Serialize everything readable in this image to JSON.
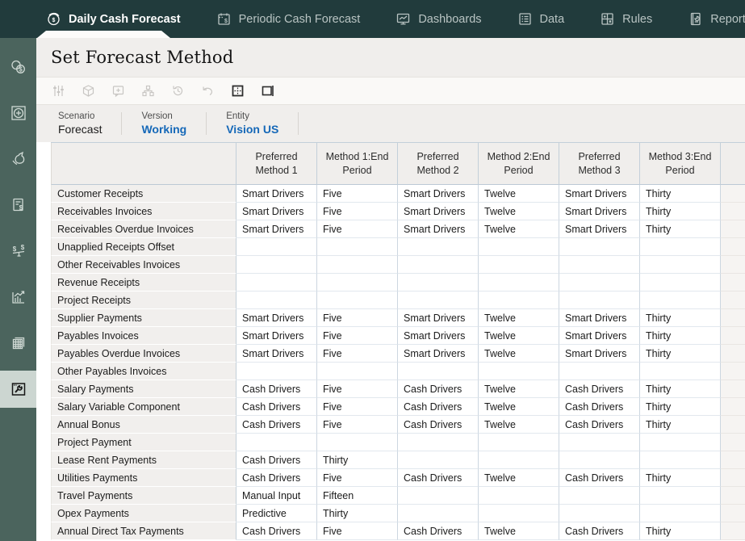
{
  "nav": {
    "tabs": [
      {
        "label": "Daily Cash Forecast",
        "icon": "dollar-cycle-icon",
        "active": true
      },
      {
        "label": "Periodic Cash Forecast",
        "icon": "calendar-dollar-icon",
        "active": false
      },
      {
        "label": "Dashboards",
        "icon": "monitor-chart-icon",
        "active": false
      },
      {
        "label": "Data",
        "icon": "data-list-icon",
        "active": false
      },
      {
        "label": "Rules",
        "icon": "calculator-icon",
        "active": false
      },
      {
        "label": "Reports",
        "icon": "report-book-icon",
        "active": false
      }
    ]
  },
  "sidebar": {
    "icons": [
      "cash-currency-icon",
      "add-target-icon",
      "money-bag-icon",
      "invoice-dollar-icon",
      "cash-balance-icon",
      "trend-chart-icon",
      "data-grids-icon",
      "configure-wrench-icon"
    ],
    "active_index": 7
  },
  "page": {
    "title": "Set Forecast Method"
  },
  "toolbar": {
    "icons": [
      "adjust-sliders-icon",
      "cube-icon",
      "comment-add-icon",
      "hierarchy-icon",
      "history-icon",
      "undo-icon",
      "freeze-panes-icon",
      "detach-grid-icon"
    ],
    "enabled": [
      false,
      false,
      false,
      false,
      false,
      false,
      true,
      true
    ]
  },
  "pov": {
    "items": [
      {
        "label": "Scenario",
        "value": "Forecast",
        "is_link": false
      },
      {
        "label": "Version",
        "value": "Working",
        "is_link": true
      },
      {
        "label": "Entity",
        "value": "Vision US",
        "is_link": true
      }
    ]
  },
  "grid": {
    "columns": [
      "Preferred Method 1",
      "Method 1:End Period",
      "Preferred Method 2",
      "Method 2:End Period",
      "Preferred Method 3",
      "Method 3:End Period"
    ],
    "rows": [
      {
        "label": "Customer Receipts",
        "values": [
          "Smart Drivers",
          "Five",
          "Smart Drivers",
          "Twelve",
          "Smart Drivers",
          "Thirty"
        ]
      },
      {
        "label": "Receivables Invoices",
        "values": [
          "Smart Drivers",
          "Five",
          "Smart Drivers",
          "Twelve",
          "Smart Drivers",
          "Thirty"
        ]
      },
      {
        "label": "Receivables Overdue Invoices",
        "values": [
          "Smart Drivers",
          "Five",
          "Smart Drivers",
          "Twelve",
          "Smart Drivers",
          "Thirty"
        ]
      },
      {
        "label": "Unapplied Receipts Offset",
        "values": [
          "",
          "",
          "",
          "",
          "",
          ""
        ]
      },
      {
        "label": "Other Receivables Invoices",
        "values": [
          "",
          "",
          "",
          "",
          "",
          ""
        ]
      },
      {
        "label": "Revenue Receipts",
        "values": [
          "",
          "",
          "",
          "",
          "",
          ""
        ]
      },
      {
        "label": "Project Receipts",
        "values": [
          "",
          "",
          "",
          "",
          "",
          ""
        ]
      },
      {
        "label": "Supplier Payments",
        "values": [
          "Smart Drivers",
          "Five",
          "Smart Drivers",
          "Twelve",
          "Smart Drivers",
          "Thirty"
        ]
      },
      {
        "label": "Payables Invoices",
        "values": [
          "Smart Drivers",
          "Five",
          "Smart Drivers",
          "Twelve",
          "Smart Drivers",
          "Thirty"
        ]
      },
      {
        "label": "Payables Overdue Invoices",
        "values": [
          "Smart Drivers",
          "Five",
          "Smart Drivers",
          "Twelve",
          "Smart Drivers",
          "Thirty"
        ]
      },
      {
        "label": "Other Payables Invoices",
        "values": [
          "",
          "",
          "",
          "",
          "",
          ""
        ]
      },
      {
        "label": "Salary Payments",
        "values": [
          "Cash Drivers",
          "Five",
          "Cash Drivers",
          "Twelve",
          "Cash Drivers",
          "Thirty"
        ]
      },
      {
        "label": "Salary Variable Component",
        "values": [
          "Cash Drivers",
          "Five",
          "Cash Drivers",
          "Twelve",
          "Cash Drivers",
          "Thirty"
        ]
      },
      {
        "label": "Annual Bonus",
        "values": [
          "Cash Drivers",
          "Five",
          "Cash Drivers",
          "Twelve",
          "Cash Drivers",
          "Thirty"
        ]
      },
      {
        "label": "Project Payment",
        "values": [
          "",
          "",
          "",
          "",
          "",
          ""
        ]
      },
      {
        "label": "Lease Rent Payments",
        "values": [
          "Cash Drivers",
          "Thirty",
          "",
          "",
          "",
          ""
        ]
      },
      {
        "label": "Utilities Payments",
        "values": [
          "Cash Drivers",
          "Five",
          "Cash Drivers",
          "Twelve",
          "Cash Drivers",
          "Thirty"
        ]
      },
      {
        "label": "Travel Payments",
        "values": [
          "Manual Input",
          "Fifteen",
          "",
          "",
          "",
          ""
        ]
      },
      {
        "label": "Opex Payments",
        "values": [
          "Predictive",
          "Thirty",
          "",
          "",
          "",
          ""
        ]
      },
      {
        "label": "Annual Direct Tax Payments",
        "values": [
          "Cash Drivers",
          "Five",
          "Cash Drivers",
          "Twelve",
          "Cash Drivers",
          "Thirty"
        ]
      }
    ]
  },
  "colors": {
    "nav_bg": "#213b3c",
    "sidebar_bg": "#4b645d",
    "sidebar_active_bg": "#ccd6d1",
    "band_bg": "#f0eeec",
    "link_blue": "#1568b8",
    "grid_border": "#c3cfd9"
  }
}
